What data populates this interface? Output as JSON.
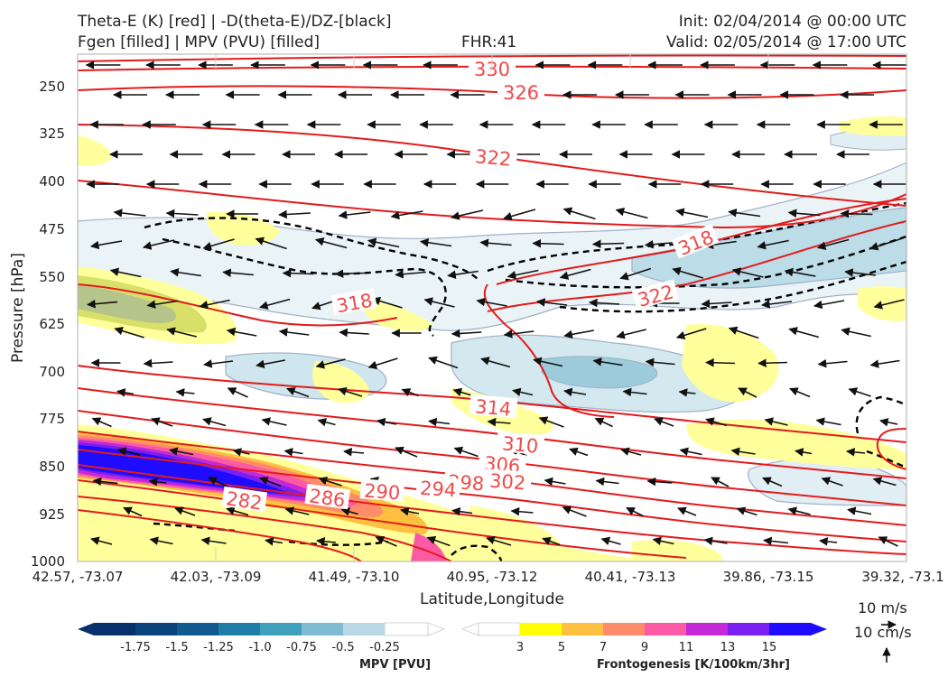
{
  "header": {
    "line1_left": "Theta-E (K) [red] | -D(theta-E)/DZ-[black]",
    "line2_left": "Fgen [filled] | MPV (PVU) [filled]",
    "center": "FHR:41",
    "line1_right": "Init: 02/04/2014 @ 00:00 UTC",
    "line2_right": "Valid: 02/05/2014 @ 17:00 UTC"
  },
  "chart_data": {
    "type": "contour-cross-section",
    "xlabel": "Latitude,Longitude",
    "ylabel": "Pressure [hPa]",
    "x_ticks": [
      "42.57, -73.07",
      "42.03, -73.09",
      "41.49, -73.10",
      "40.95, -73.12",
      "40.41, -73.13",
      "39.86, -73.15",
      "39.32, -73.1"
    ],
    "y_ticks": [
      250,
      325,
      400,
      475,
      550,
      625,
      700,
      775,
      850,
      925,
      1000
    ],
    "ylim": [
      1000,
      200
    ],
    "theta_e_labels": [
      "330",
      "326",
      "322",
      "318",
      "322",
      "318",
      "314",
      "310",
      "306",
      "302",
      "298",
      "294",
      "290",
      "286",
      "282"
    ],
    "colors": {
      "theta_e": "#e31a1c",
      "theta_e_label": "#ef4b4b",
      "dthetae_dz": "#000000",
      "mpv_outline": "#9fb0c8"
    }
  },
  "colorbars": {
    "mpv": {
      "label": "MPV [PVU]",
      "ticks": [
        "-1.75",
        "-1.5",
        "-1.25",
        "-1.0",
        "-0.75",
        "-0.5",
        "-0.25"
      ],
      "colors": [
        "#08306b",
        "#08447c",
        "#115a8f",
        "#1f7ea6",
        "#3fa0be",
        "#7fbcd2",
        "#b9d9e4",
        "#ffffff"
      ]
    },
    "fgen": {
      "label": "Frontogenesis [K/100km/3hr]",
      "ticks": [
        "3",
        "5",
        "7",
        "9",
        "11",
        "13",
        "15"
      ],
      "colors": [
        "#ffffff",
        "#ffff00",
        "#fec040",
        "#fe8c6a",
        "#fd5aa5",
        "#c32ad6",
        "#7a1ff0",
        "#1f0cff"
      ]
    }
  },
  "wind_key": {
    "horizontal": "10 m/s",
    "vertical": "10 cm/s"
  }
}
